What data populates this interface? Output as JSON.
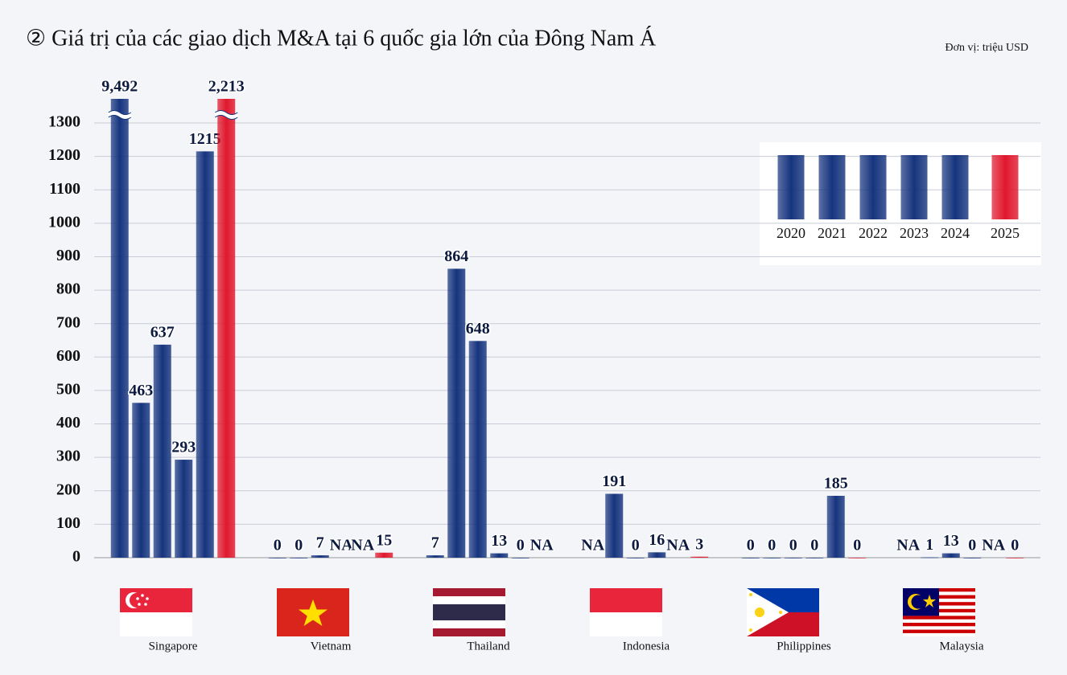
{
  "chart_data": {
    "type": "bar",
    "title": "② Giá trị của các giao dịch M&A tại 6 quốc gia lớn của Đông Nam Á",
    "subtitle": "Đơn vị: triệu USD",
    "categories": [
      "Singapore",
      "Vietnam",
      "Thailand",
      "Indonesia",
      "Philippines",
      "Malaysia"
    ],
    "series": [
      {
        "name": "2020",
        "color": "#16347e",
        "values": [
          9492,
          0,
          7,
          null,
          0,
          null
        ],
        "value_labels": [
          "9,492",
          null,
          null,
          "NA",
          null,
          "NA"
        ]
      },
      {
        "name": "2021",
        "color": "#16347e",
        "values": [
          463,
          0,
          864,
          191,
          0,
          1
        ],
        "value_labels": [
          null,
          null,
          null,
          null,
          null,
          null
        ]
      },
      {
        "name": "2022",
        "color": "#16347e",
        "values": [
          637,
          7,
          648,
          0,
          0,
          13
        ],
        "value_labels": [
          null,
          null,
          null,
          null,
          null,
          null
        ]
      },
      {
        "name": "2023",
        "color": "#16347e",
        "values": [
          293,
          null,
          13,
          16,
          0,
          0
        ],
        "value_labels": [
          null,
          "NA",
          null,
          null,
          null,
          null
        ]
      },
      {
        "name": "2024",
        "color": "#16347e",
        "values": [
          1215,
          null,
          0,
          null,
          185,
          null
        ],
        "value_labels": [
          null,
          "NA",
          null,
          "NA",
          null,
          "NA"
        ]
      },
      {
        "name": "2025",
        "color": "#e0182d",
        "values": [
          2213,
          15,
          null,
          3,
          0,
          0
        ],
        "value_labels": [
          "2,213",
          null,
          "NA",
          null,
          null,
          null
        ]
      }
    ],
    "ylim": [
      0,
      1300
    ],
    "yticks": [
      0,
      100,
      200,
      300,
      400,
      500,
      600,
      700,
      800,
      900,
      1000,
      1100,
      1200,
      1300
    ],
    "grid": true,
    "legend": "upper right"
  }
}
